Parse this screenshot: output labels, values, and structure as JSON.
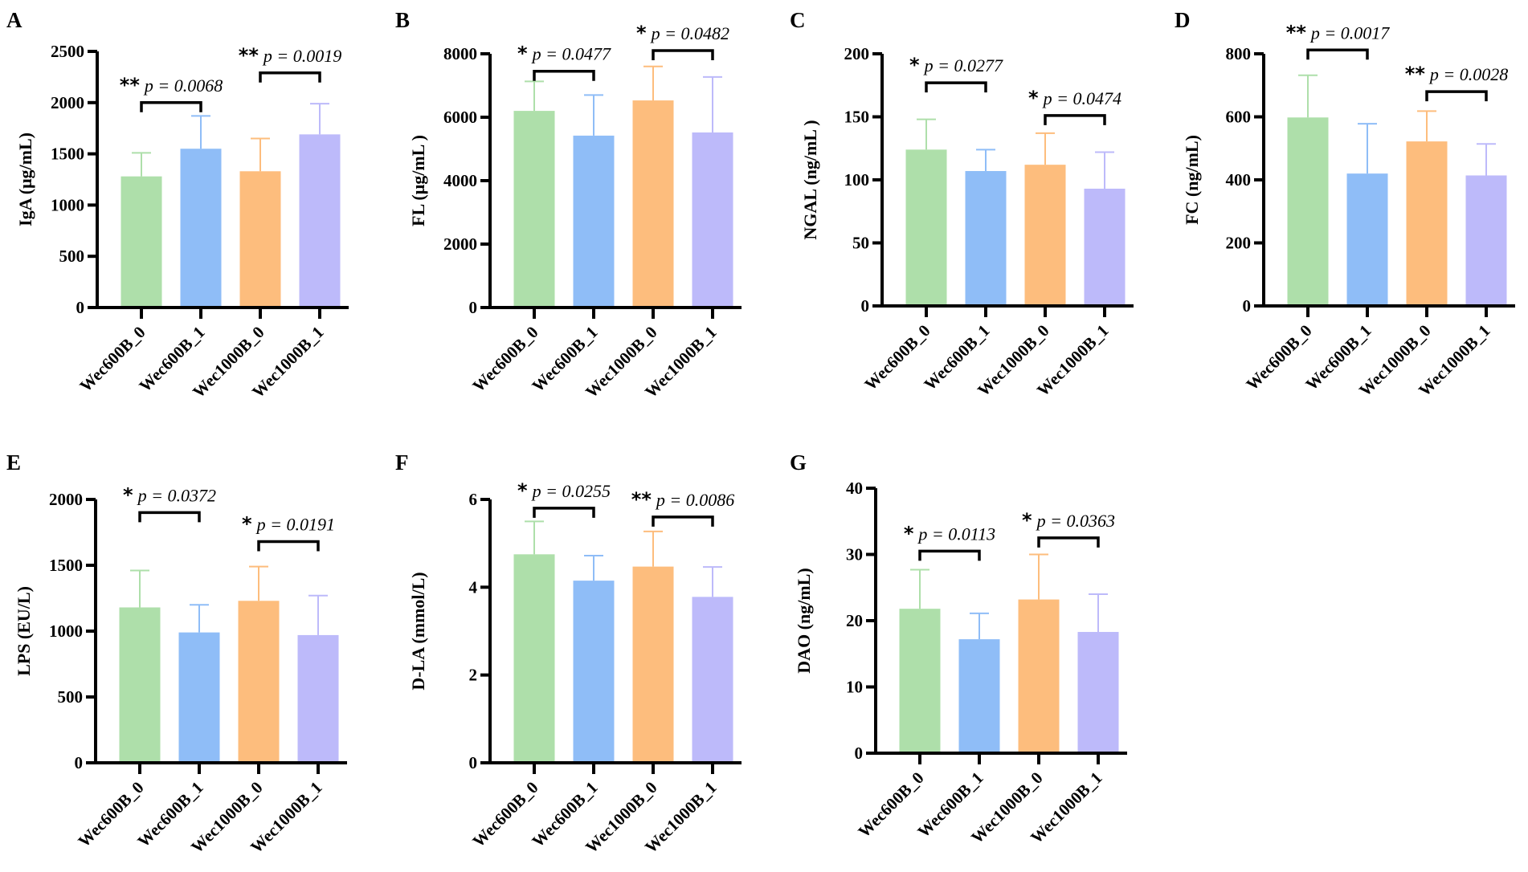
{
  "colors": [
    "#aedfaa",
    "#8fbdf7",
    "#fdbd7d",
    "#bdbafa"
  ],
  "chart_data": [
    {
      "type": "bar",
      "panel": "A",
      "ylabel": "IgA (μg/mL)",
      "ylim": [
        0,
        2500
      ],
      "yticks": [
        0,
        500,
        1000,
        1500,
        2000,
        2500
      ],
      "categories": [
        "Wec600B_0",
        "Wec600B_1",
        "Wec1000B_0",
        "Wec1000B_1"
      ],
      "values": [
        1280,
        1550,
        1330,
        1690
      ],
      "errors": [
        230,
        320,
        320,
        300
      ],
      "comparisons": [
        {
          "groups": [
            0,
            1
          ],
          "stars": "**",
          "p": "p = 0.0068",
          "y": 2000
        },
        {
          "groups": [
            2,
            3
          ],
          "stars": "**",
          "p": "p = 0.0019",
          "y": 2290
        }
      ]
    },
    {
      "type": "bar",
      "panel": "B",
      "ylabel": "FL (μg/mL )",
      "ylim": [
        0,
        8000
      ],
      "yticks": [
        0,
        2000,
        4000,
        6000,
        8000
      ],
      "categories": [
        "Wec600B_0",
        "Wec600B_1",
        "Wec1000B_0",
        "Wec1000B_1"
      ],
      "values": [
        6200,
        5420,
        6530,
        5520
      ],
      "errors": [
        930,
        1280,
        1070,
        1750
      ],
      "comparisons": [
        {
          "groups": [
            0,
            1
          ],
          "stars": "*",
          "p": "p = 0.0477",
          "y": 7450
        },
        {
          "groups": [
            2,
            3
          ],
          "stars": "*",
          "p": "p = 0.0482",
          "y": 8100
        }
      ]
    },
    {
      "type": "bar",
      "panel": "C",
      "ylabel": "NGAL (ng/mL )",
      "ylim": [
        0,
        200
      ],
      "yticks": [
        0,
        50,
        100,
        150,
        200
      ],
      "categories": [
        "Wec600B_0",
        "Wec600B_1",
        "Wec1000B_0",
        "Wec1000B_1"
      ],
      "values": [
        124,
        107,
        112,
        93
      ],
      "errors": [
        24,
        17,
        25,
        29
      ],
      "comparisons": [
        {
          "groups": [
            0,
            1
          ],
          "stars": "*",
          "p": "p = 0.0277",
          "y": 177
        },
        {
          "groups": [
            2,
            3
          ],
          "stars": "*",
          "p": "p = 0.0474",
          "y": 151
        }
      ]
    },
    {
      "type": "bar",
      "panel": "D",
      "ylabel": "FC (ng/mL)",
      "ylim": [
        0,
        800
      ],
      "yticks": [
        0,
        200,
        400,
        600,
        800
      ],
      "categories": [
        "Wec600B_0",
        "Wec600B_1",
        "Wec1000B_0",
        "Wec1000B_1"
      ],
      "values": [
        598,
        420,
        522,
        414
      ],
      "errors": [
        134,
        158,
        96,
        100
      ],
      "comparisons": [
        {
          "groups": [
            0,
            1
          ],
          "stars": "**",
          "p": "p = 0.0017",
          "y": 812
        },
        {
          "groups": [
            2,
            3
          ],
          "stars": "**",
          "p": "p = 0.0028",
          "y": 680
        }
      ]
    },
    {
      "type": "bar",
      "panel": "E",
      "ylabel": "LPS (EU/L)",
      "ylim": [
        0,
        2000
      ],
      "yticks": [
        0,
        500,
        1000,
        1500,
        2000
      ],
      "categories": [
        "Wec600B_0",
        "Wec600B_1",
        "Wec1000B_0",
        "Wec1000B_1"
      ],
      "values": [
        1180,
        990,
        1230,
        970
      ],
      "errors": [
        280,
        210,
        260,
        300
      ],
      "comparisons": [
        {
          "groups": [
            0,
            1
          ],
          "stars": "*",
          "p": "p = 0.0372",
          "y": 1900
        },
        {
          "groups": [
            2,
            3
          ],
          "stars": "*",
          "p": "p = 0.0191",
          "y": 1680
        }
      ]
    },
    {
      "type": "bar",
      "panel": "F",
      "ylabel": "D-LA (mmol/L)",
      "ylim": [
        0,
        6
      ],
      "yticks": [
        0,
        2,
        4,
        6
      ],
      "categories": [
        "Wec600B_0",
        "Wec600B_1",
        "Wec1000B_0",
        "Wec1000B_1"
      ],
      "values": [
        4.75,
        4.15,
        4.47,
        3.78
      ],
      "errors": [
        0.75,
        0.57,
        0.8,
        0.68
      ],
      "comparisons": [
        {
          "groups": [
            0,
            1
          ],
          "stars": "*",
          "p": "p = 0.0255",
          "y": 5.8
        },
        {
          "groups": [
            2,
            3
          ],
          "stars": "**",
          "p": "p = 0.0086",
          "y": 5.6
        }
      ]
    },
    {
      "type": "bar",
      "panel": "G",
      "ylabel": "DAO (ng/mL)",
      "ylim": [
        0,
        40
      ],
      "yticks": [
        0,
        10,
        20,
        30,
        40
      ],
      "categories": [
        "Wec600B_0",
        "Wec600B_1",
        "Wec1000B_0",
        "Wec1000B_1"
      ],
      "values": [
        21.8,
        17.2,
        23.2,
        18.3
      ],
      "errors": [
        5.9,
        3.9,
        6.8,
        5.7
      ],
      "comparisons": [
        {
          "groups": [
            0,
            1
          ],
          "stars": "*",
          "p": "p = 0.0113",
          "y": 30.5
        },
        {
          "groups": [
            2,
            3
          ],
          "stars": "*",
          "p": "p = 0.0363",
          "y": 32.5
        }
      ]
    }
  ]
}
